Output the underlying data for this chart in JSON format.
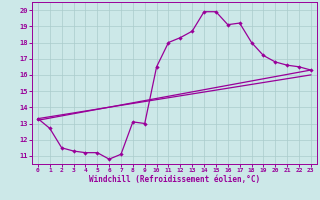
{
  "bg_color": "#cce8e8",
  "line_color": "#990099",
  "grid_color": "#aacccc",
  "xlabel": "Windchill (Refroidissement éolien,°C)",
  "xlabel_color": "#990099",
  "tick_color": "#990099",
  "ylim": [
    10.5,
    20.5
  ],
  "xlim": [
    -0.5,
    23.5
  ],
  "yticks": [
    11,
    12,
    13,
    14,
    15,
    16,
    17,
    18,
    19,
    20
  ],
  "xticks": [
    0,
    1,
    2,
    3,
    4,
    5,
    6,
    7,
    8,
    9,
    10,
    11,
    12,
    13,
    14,
    15,
    16,
    17,
    18,
    19,
    20,
    21,
    22,
    23
  ],
  "line1_x": [
    0,
    1,
    2,
    3,
    4,
    5,
    6,
    7,
    8,
    9,
    10,
    11,
    12,
    13,
    14,
    15,
    16,
    17,
    18,
    19,
    20,
    21,
    22,
    23
  ],
  "line1_y": [
    13.3,
    12.7,
    11.5,
    11.3,
    11.2,
    11.2,
    10.8,
    11.1,
    13.1,
    13.0,
    16.5,
    18.0,
    18.3,
    18.7,
    19.9,
    19.9,
    19.1,
    19.2,
    18.0,
    17.2,
    16.8,
    16.6,
    16.5,
    16.3
  ],
  "line2_x": [
    0,
    23
  ],
  "line2_y": [
    13.2,
    16.3
  ],
  "line3_x": [
    0,
    23
  ],
  "line3_y": [
    13.3,
    16.0
  ]
}
